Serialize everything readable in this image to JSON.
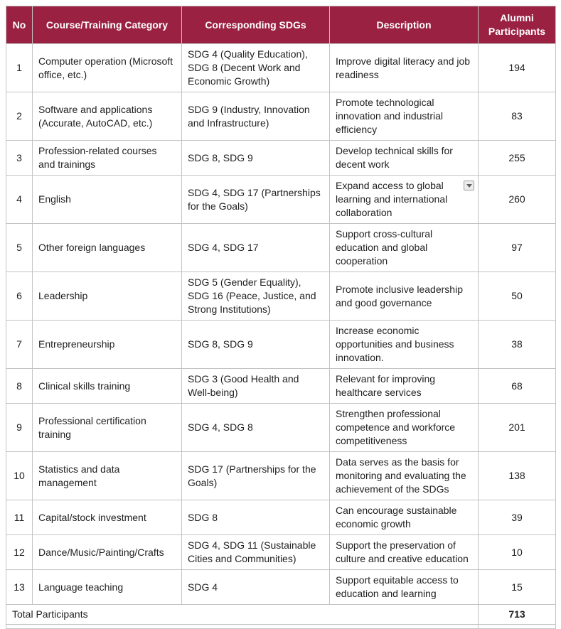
{
  "colors": {
    "header_bg": "#9b2143",
    "header_text": "#ffffff",
    "border": "#c3c3c3",
    "body_text": "#1f1f1f"
  },
  "icons": {
    "row4_description_widget": "dropdown-arrow-icon"
  },
  "table": {
    "headers": [
      "No",
      "Course/Training Category",
      "Corresponding SDGs",
      "Description",
      "Alumni Participants"
    ],
    "rows": [
      {
        "no": "1",
        "category": "Computer operation (Microsoft office, etc.)",
        "sdgs": "SDG 4 (Quality Education), SDG 8 (Decent Work and Economic Growth)",
        "description": "Improve digital literacy and job readiness",
        "participants": "194",
        "has_dropdown": false
      },
      {
        "no": "2",
        "category": "Software and applications (Accurate, AutoCAD, etc.)",
        "sdgs": "SDG 9 (Industry, Innovation and Infrastructure)",
        "description": "Promote technological innovation and industrial efficiency",
        "participants": "83",
        "has_dropdown": false
      },
      {
        "no": "3",
        "category": "Profession-related courses and trainings",
        "sdgs": "SDG 8, SDG 9",
        "description": "Develop technical skills for decent work",
        "participants": "255",
        "has_dropdown": false
      },
      {
        "no": "4",
        "category": "English",
        "sdgs": "SDG 4, SDG 17 (Partnerships for the Goals)",
        "description": "Expand access to global learning and international collaboration",
        "participants": "260",
        "has_dropdown": true
      },
      {
        "no": "5",
        "category": "Other foreign languages",
        "sdgs": "SDG 4, SDG 17",
        "description": "Support cross-cultural education and global cooperation",
        "participants": "97",
        "has_dropdown": false
      },
      {
        "no": "6",
        "category": "Leadership",
        "sdgs": "SDG 5 (Gender Equality), SDG 16 (Peace, Justice, and Strong Institutions)",
        "description": "Promote inclusive leadership and good governance",
        "participants": "50",
        "has_dropdown": false
      },
      {
        "no": "7",
        "category": "Entrepreneurship",
        "sdgs": "SDG 8, SDG 9",
        "description": "Increase economic opportunities and business innovation.",
        "participants": "38",
        "has_dropdown": false
      },
      {
        "no": "8",
        "category": "Clinical skills training",
        "sdgs": "SDG 3 (Good Health and Well-being)",
        "description": "Relevant for improving healthcare services",
        "participants": "68",
        "has_dropdown": false
      },
      {
        "no": "9",
        "category": "Professional certification training",
        "sdgs": "SDG 4, SDG 8",
        "description": "Strengthen professional competence and workforce competitiveness",
        "participants": "201",
        "has_dropdown": false
      },
      {
        "no": "10",
        "category": "Statistics and data management",
        "sdgs": "SDG 17 (Partnerships for the Goals)",
        "description": "Data serves as the basis for monitoring and evaluating the achievement of the SDGs",
        "participants": "138",
        "has_dropdown": false
      },
      {
        "no": "11",
        "category": "Capital/stock investment",
        "sdgs": "SDG 8",
        "description": "Can encourage sustainable economic growth",
        "participants": "39",
        "has_dropdown": false
      },
      {
        "no": "12",
        "category": "Dance/Music/Painting/Crafts",
        "sdgs": "SDG 4, SDG 11 (Sustainable Cities and Communities)",
        "description": "Support the preservation of culture and creative education",
        "participants": "10",
        "has_dropdown": false
      },
      {
        "no": "13",
        "category": "Language teaching",
        "sdgs": "SDG 4",
        "description": "Support equitable access to education and learning",
        "participants": "15",
        "has_dropdown": false
      }
    ],
    "footer": {
      "label": "Total Participants",
      "total": "713"
    }
  }
}
